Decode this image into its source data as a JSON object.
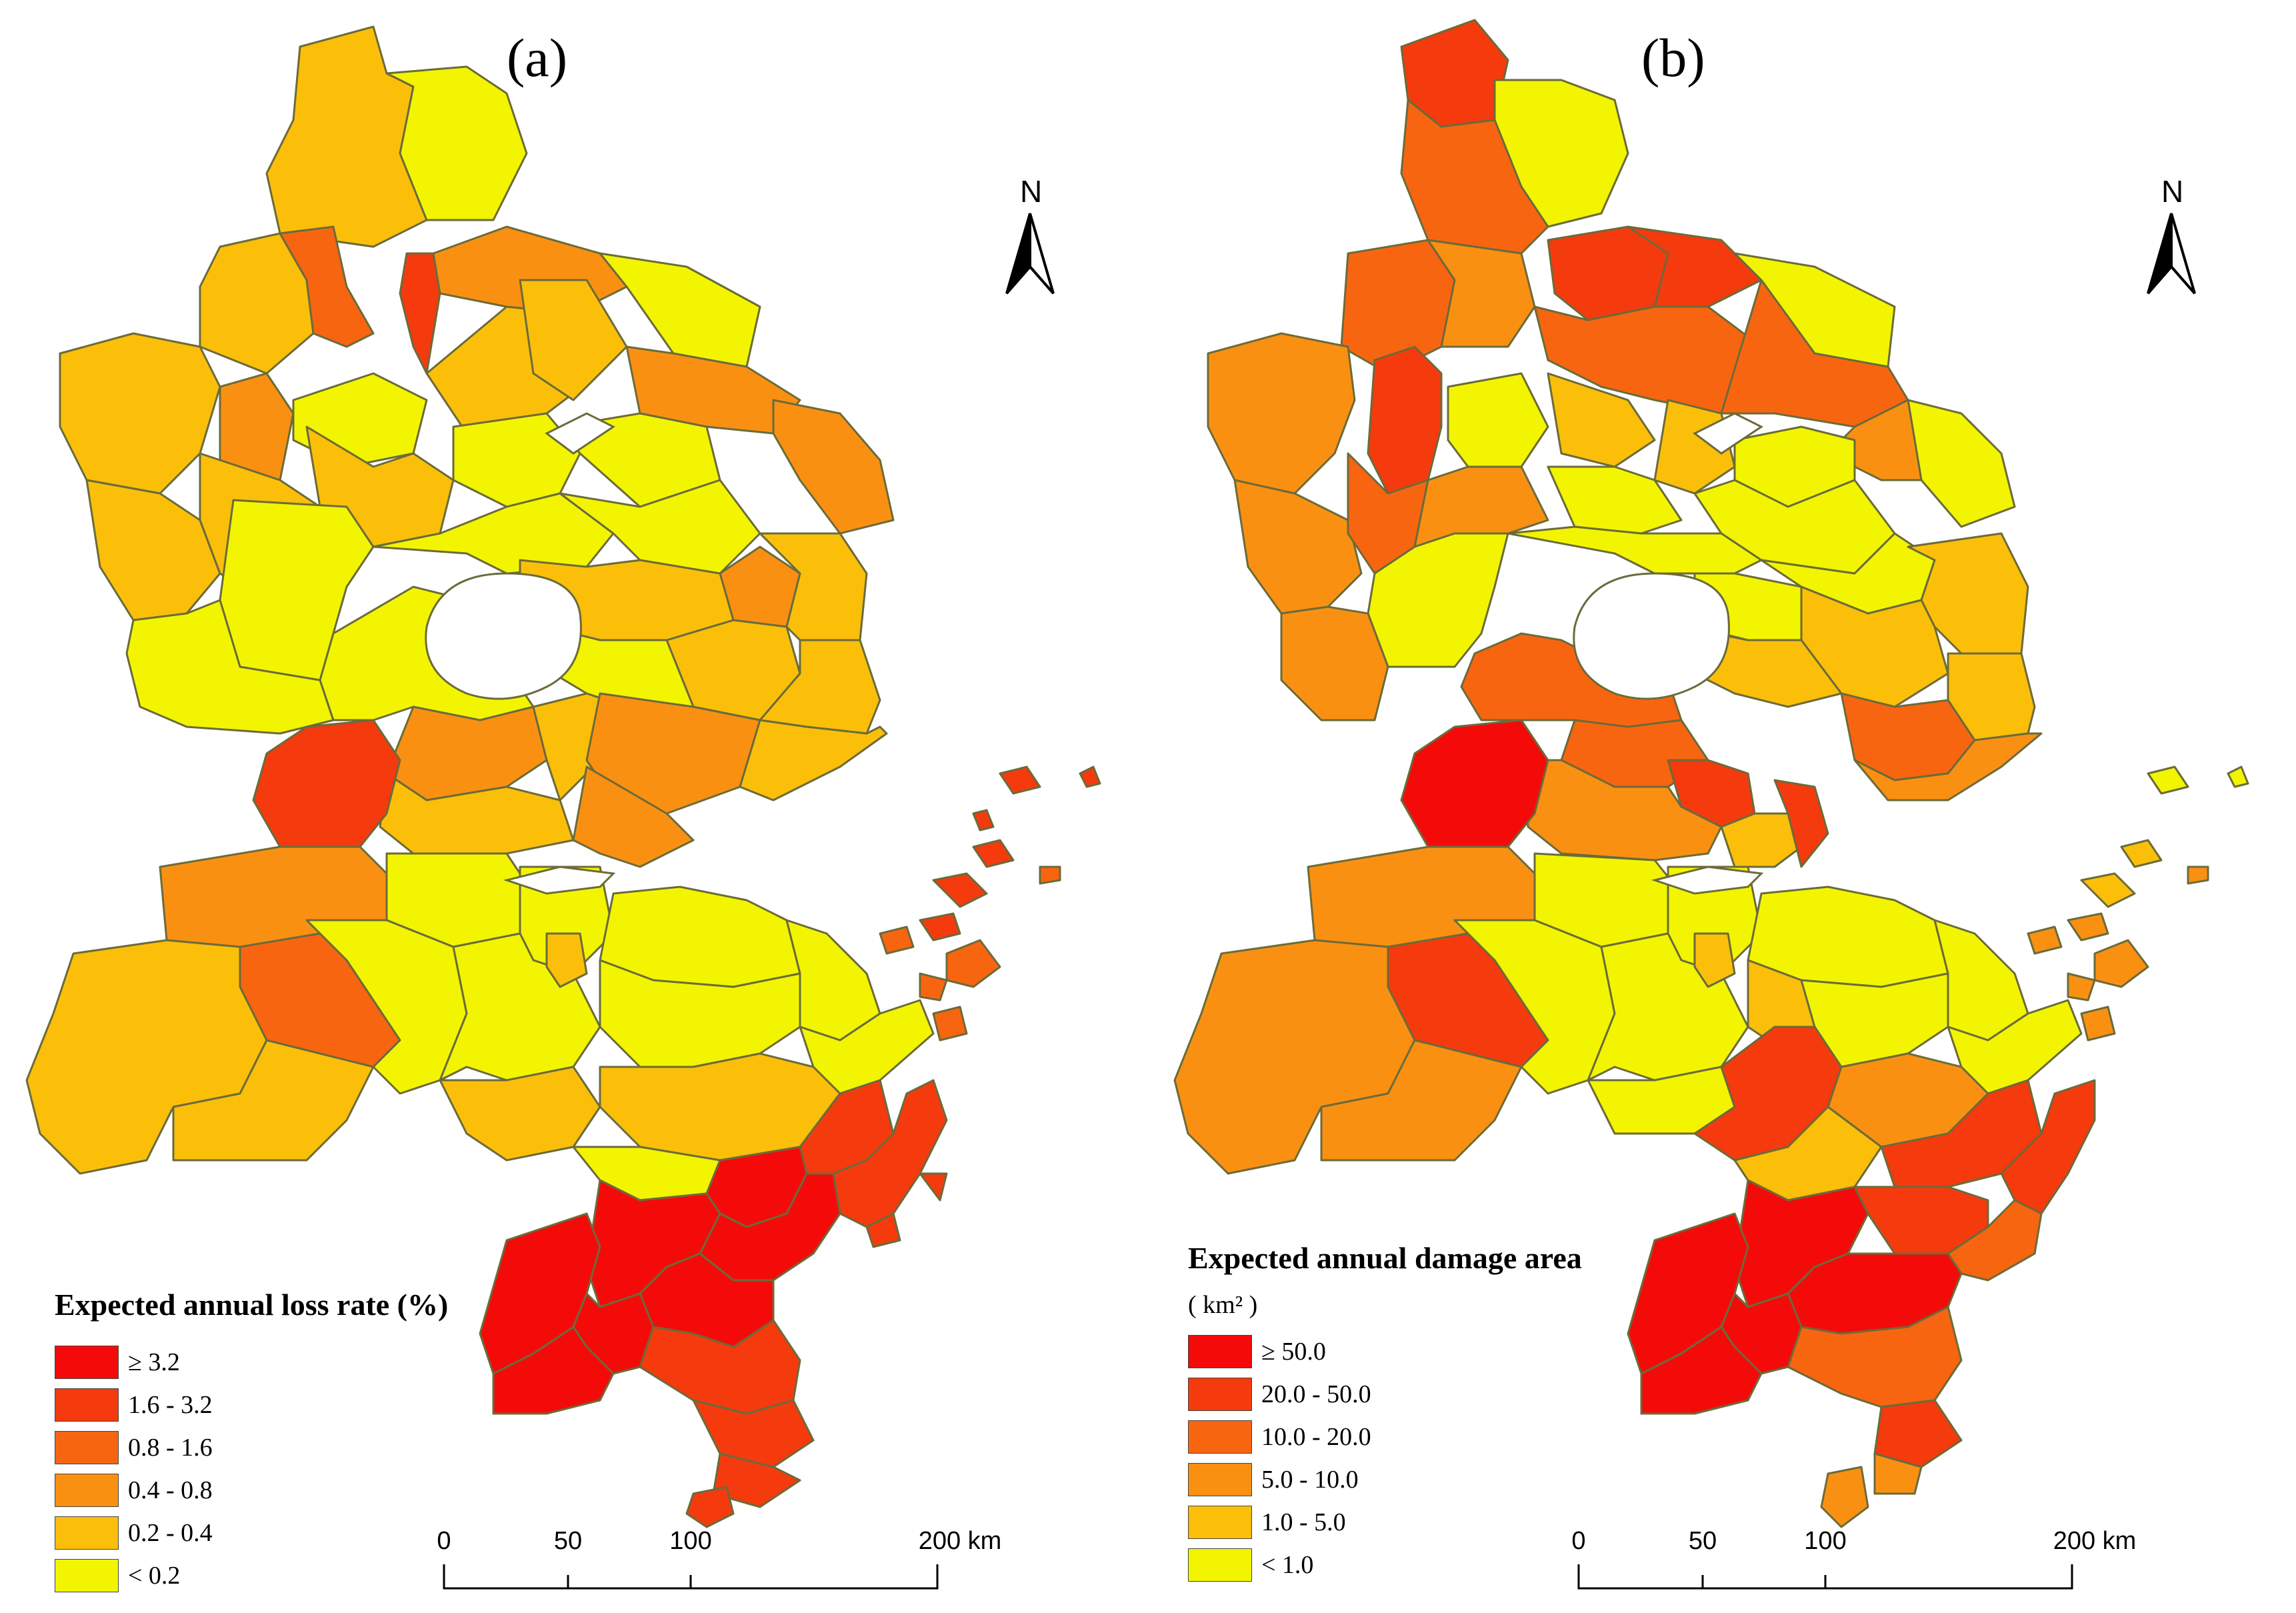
{
  "panels": [
    {
      "label": "(a)",
      "legend": {
        "title": "Expected annual loss rate (%)",
        "unit": "",
        "items": [
          {
            "label": "≥ 3.2",
            "color": "#f50a0a"
          },
          {
            "label": "1.6 - 3.2",
            "color": "#f53a0e"
          },
          {
            "label": "0.8 - 1.6",
            "color": "#f86510"
          },
          {
            "label": "0.4 - 0.8",
            "color": "#fa9012"
          },
          {
            "label": "0.2 - 0.4",
            "color": "#fbbf0a"
          },
          {
            "label": "< 0.2",
            "color": "#f3f500"
          }
        ]
      },
      "north_label": "N",
      "scale": {
        "ticks": [
          "0",
          "50",
          "100",
          "200 km"
        ]
      }
    },
    {
      "label": "(b)",
      "legend": {
        "title": "Expected annual damage area",
        "unit": "( km² )",
        "items": [
          {
            "label": "≥ 50.0",
            "color": "#f50a0a"
          },
          {
            "label": "20.0 - 50.0",
            "color": "#f53a0e"
          },
          {
            "label": "10.0 - 20.0",
            "color": "#f86510"
          },
          {
            "label": "5.0 - 10.0",
            "color": "#fa9012"
          },
          {
            "label": "1.0 - 5.0",
            "color": "#fbbf0a"
          },
          {
            "label": "< 1.0",
            "color": "#f3f500"
          }
        ]
      },
      "north_label": "N",
      "scale": {
        "ticks": [
          "0",
          "50",
          "100",
          "200 km"
        ]
      }
    }
  ]
}
